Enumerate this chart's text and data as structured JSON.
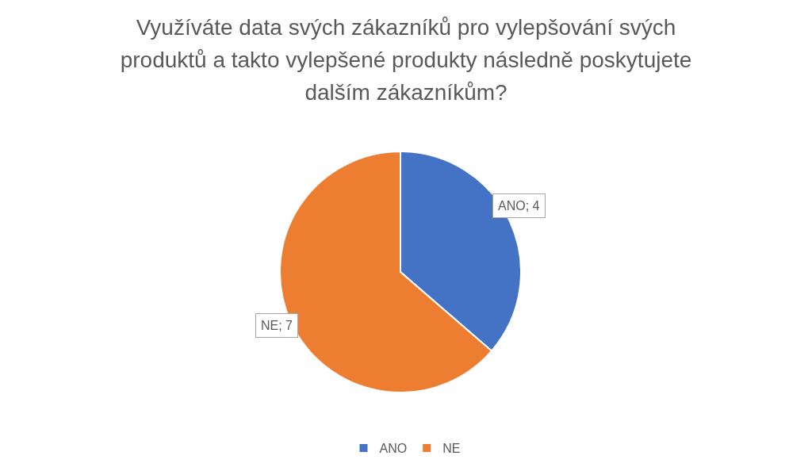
{
  "chart_data": {
    "type": "pie",
    "title": "Využíváte data svých zákazníků pro vylepšování svých produktů a takto vylepšené produkty následně poskytujete dalším zákazníkům?",
    "categories": [
      "ANO",
      "NE"
    ],
    "values": [
      4,
      7
    ],
    "colors": [
      "#4472c4",
      "#ed7d31"
    ],
    "value_labels": [
      "ANO; 4",
      "NE; 7"
    ],
    "legend": "bottom"
  }
}
